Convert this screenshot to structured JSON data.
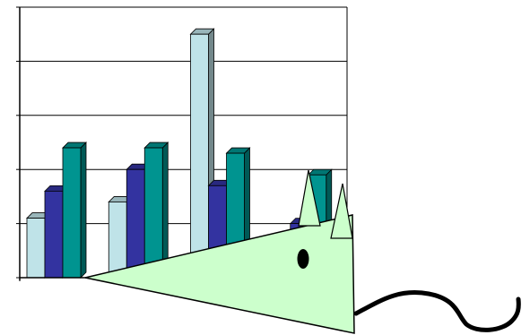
{
  "chart_data": {
    "type": "bar",
    "style": "3d-clustered-column",
    "categories": [
      "",
      "",
      "",
      ""
    ],
    "series": [
      {
        "color": "#bfe3e8",
        "values": [
          1.1,
          1.4,
          4.5,
          0.2
        ]
      },
      {
        "color": "#3333a0",
        "values": [
          1.6,
          2.0,
          1.7,
          1.0
        ]
      },
      {
        "color": "#009490",
        "values": [
          2.4,
          2.4,
          2.3,
          1.9
        ]
      }
    ],
    "ylim": [
      0,
      5
    ],
    "grid": true,
    "legend": "none"
  },
  "overlay": {
    "shape": "mouse-drawing",
    "body_color": "#ccffcc",
    "outline_color": "#000000"
  }
}
